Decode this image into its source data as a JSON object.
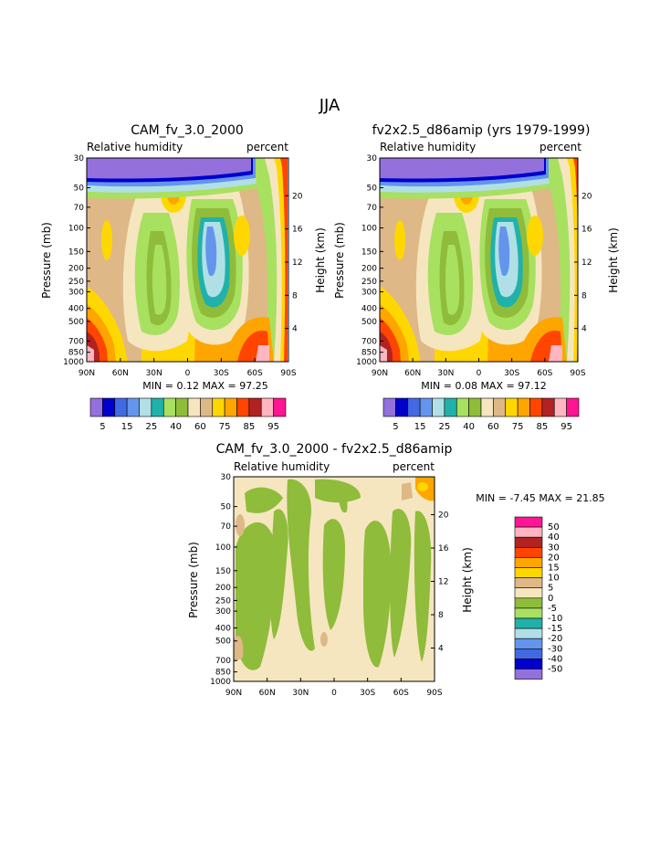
{
  "page": {
    "title": "JJA"
  },
  "chart_data": [
    {
      "type": "heatmap",
      "title": "CAM_fv_3.0_2000",
      "variable": "Relative humidity",
      "units": "percent",
      "ylabel": "Pressure (mb)",
      "y2label": "Height (km)",
      "xticks": [
        "90N",
        "60N",
        "30N",
        "0",
        "30S",
        "60S",
        "90S"
      ],
      "yticks": [
        "1000",
        "850",
        "700",
        "500",
        "400",
        "300",
        "250",
        "200",
        "150",
        "100",
        "70",
        "50",
        "30"
      ],
      "y2ticks": [
        "4",
        "8",
        "12",
        "16",
        "20"
      ],
      "ylim": [
        1000,
        30
      ],
      "yscale": "log",
      "stats": "MIN =    0.12   MAX =   97.25",
      "min": 0.12,
      "max": 97.25
    },
    {
      "type": "heatmap",
      "title": "fv2x2.5_d86amip (yrs 1979-1999)",
      "variable": "Relative humidity",
      "units": "percent",
      "ylabel": "Pressure (mb)",
      "y2label": "Height (km)",
      "xticks": [
        "90N",
        "60N",
        "30N",
        "0",
        "30S",
        "60S",
        "90S"
      ],
      "yticks": [
        "1000",
        "850",
        "700",
        "500",
        "400",
        "300",
        "250",
        "200",
        "150",
        "100",
        "70",
        "50",
        "30"
      ],
      "y2ticks": [
        "4",
        "8",
        "12",
        "16",
        "20"
      ],
      "ylim": [
        1000,
        30
      ],
      "yscale": "log",
      "stats": "MIN =    0.08   MAX =   97.12",
      "min": 0.08,
      "max": 97.12
    },
    {
      "type": "heatmap",
      "title": "CAM_fv_3.0_2000 - fv2x2.5_d86amip",
      "variable": "Relative humidity",
      "units": "percent",
      "ylabel": "Pressure (mb)",
      "y2label": "Height (km)",
      "xticks": [
        "90N",
        "60N",
        "30N",
        "0",
        "30S",
        "60S",
        "90S"
      ],
      "yticks": [
        "1000",
        "850",
        "700",
        "500",
        "400",
        "300",
        "250",
        "200",
        "150",
        "100",
        "70",
        "50",
        "30"
      ],
      "y2ticks": [
        "4",
        "8",
        "12",
        "16",
        "20"
      ],
      "ylim": [
        1000,
        30
      ],
      "yscale": "log",
      "stats": "MIN =   -7.45   MAX =   21.85",
      "min": -7.45,
      "max": 21.85
    }
  ],
  "colorbar_top": {
    "labels": [
      "5",
      "15",
      "25",
      "40",
      "60",
      "75",
      "85",
      "95"
    ],
    "colors": [
      "#9370db",
      "#0000cd",
      "#4169e1",
      "#6495ed",
      "#b0e0e6",
      "#20b2aa",
      "#a8e060",
      "#8fbc3a",
      "#f5e6c0",
      "#deb887",
      "#ffd700",
      "#ffa500",
      "#ff4500",
      "#b22222",
      "#ffb6c1",
      "#ff1493"
    ]
  },
  "colorbar_diff": {
    "labels": [
      "50",
      "40",
      "30",
      "20",
      "15",
      "10",
      "5",
      "0",
      "-5",
      "-10",
      "-15",
      "-20",
      "-30",
      "-40",
      "-50"
    ],
    "colors": [
      "#ff1493",
      "#ffb6c1",
      "#b22222",
      "#ff4500",
      "#ffa500",
      "#ffd700",
      "#deb887",
      "#f5e6c0",
      "#8fbc3a",
      "#a8e060",
      "#20b2aa",
      "#b0e0e6",
      "#6495ed",
      "#4169e1",
      "#0000cd",
      "#9370db"
    ]
  }
}
